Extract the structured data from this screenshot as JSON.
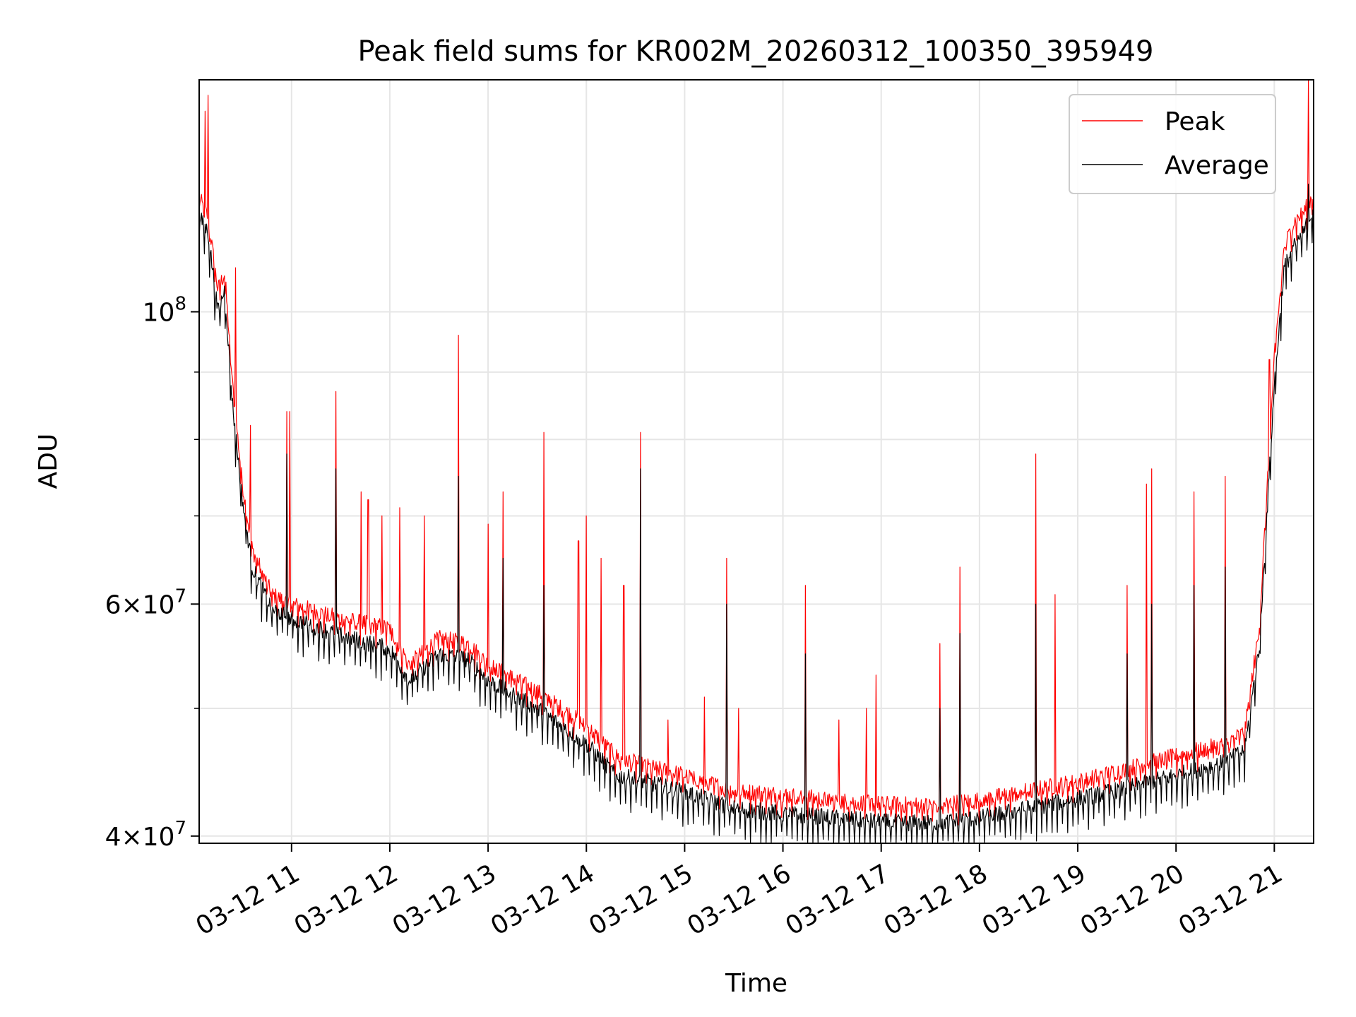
{
  "chart_data": {
    "type": "line",
    "title": "Peak field sums for KR002M_20260312_100350_395949",
    "xlabel": "Time",
    "ylabel": "ADU",
    "yscale": "log",
    "ylim": [
      39500000,
      150000000
    ],
    "xlim_hours": [
      10.06,
      21.4
    ],
    "x_ticks": [
      {
        "hour": 11,
        "label": "03-12 11"
      },
      {
        "hour": 12,
        "label": "03-12 12"
      },
      {
        "hour": 13,
        "label": "03-12 13"
      },
      {
        "hour": 14,
        "label": "03-12 14"
      },
      {
        "hour": 15,
        "label": "03-12 15"
      },
      {
        "hour": 16,
        "label": "03-12 16"
      },
      {
        "hour": 17,
        "label": "03-12 17"
      },
      {
        "hour": 18,
        "label": "03-12 18"
      },
      {
        "hour": 19,
        "label": "03-12 19"
      },
      {
        "hour": 20,
        "label": "03-12 20"
      },
      {
        "hour": 21,
        "label": "03-12 21"
      }
    ],
    "y_ticks_major": [
      {
        "value": 40000000,
        "base": "4",
        "exp": "7"
      },
      {
        "value": 60000000,
        "base": "6",
        "exp": "7"
      },
      {
        "value": 100000000,
        "base": "",
        "exp": "8"
      }
    ],
    "y_ticks_minor": [
      50000000,
      70000000,
      80000000,
      90000000
    ],
    "grid": true,
    "legend_position": "top-right",
    "series": [
      {
        "name": "Peak",
        "color": "#ff0000",
        "baseline": [
          [
            10.06,
            122000000
          ],
          [
            10.15,
            118000000
          ],
          [
            10.25,
            104000000
          ],
          [
            10.32,
            107000000
          ],
          [
            10.4,
            88000000
          ],
          [
            10.5,
            74000000
          ],
          [
            10.6,
            66000000
          ],
          [
            10.8,
            61000000
          ],
          [
            11.0,
            60000000
          ],
          [
            11.5,
            58500000
          ],
          [
            12.0,
            57500000
          ],
          [
            12.2,
            54000000
          ],
          [
            12.5,
            56500000
          ],
          [
            12.8,
            56000000
          ],
          [
            13.0,
            54000000
          ],
          [
            13.5,
            51500000
          ],
          [
            14.0,
            48500000
          ],
          [
            14.3,
            46000000
          ],
          [
            14.6,
            45200000
          ],
          [
            15.0,
            44500000
          ],
          [
            15.5,
            43300000
          ],
          [
            16.0,
            43000000
          ],
          [
            16.5,
            42600000
          ],
          [
            17.0,
            42300000
          ],
          [
            17.5,
            42200000
          ],
          [
            18.0,
            42600000
          ],
          [
            18.5,
            43300000
          ],
          [
            19.0,
            44000000
          ],
          [
            19.5,
            45000000
          ],
          [
            20.0,
            46000000
          ],
          [
            20.5,
            47000000
          ],
          [
            20.7,
            48000000
          ],
          [
            20.85,
            58000000
          ],
          [
            21.0,
            92000000
          ],
          [
            21.1,
            112000000
          ],
          [
            21.2,
            117000000
          ],
          [
            21.3,
            119000000
          ],
          [
            21.4,
            123000000
          ]
        ],
        "spikes": [
          [
            10.12,
            142000000
          ],
          [
            10.15,
            146000000
          ],
          [
            10.43,
            108000000
          ],
          [
            10.58,
            82000000
          ],
          [
            10.95,
            84000000
          ],
          [
            10.98,
            84000000
          ],
          [
            11.45,
            87000000
          ],
          [
            11.71,
            73000000
          ],
          [
            11.78,
            72000000
          ],
          [
            11.92,
            70000000
          ],
          [
            12.1,
            71000000
          ],
          [
            12.35,
            70000000
          ],
          [
            12.7,
            96000000
          ],
          [
            13.0,
            69000000
          ],
          [
            13.15,
            73000000
          ],
          [
            13.57,
            81000000
          ],
          [
            13.92,
            67000000
          ],
          [
            14.0,
            70000000
          ],
          [
            14.15,
            65000000
          ],
          [
            14.38,
            62000000
          ],
          [
            14.55,
            81000000
          ],
          [
            14.83,
            49000000
          ],
          [
            15.2,
            51000000
          ],
          [
            15.43,
            65000000
          ],
          [
            15.55,
            50000000
          ],
          [
            16.23,
            62000000
          ],
          [
            16.57,
            49000000
          ],
          [
            16.85,
            50000000
          ],
          [
            16.95,
            53000000
          ],
          [
            17.6,
            56000000
          ],
          [
            17.8,
            64000000
          ],
          [
            18.57,
            78000000
          ],
          [
            18.77,
            61000000
          ],
          [
            19.5,
            62000000
          ],
          [
            19.7,
            74000000
          ],
          [
            19.75,
            76000000
          ],
          [
            20.18,
            73000000
          ],
          [
            20.5,
            75000000
          ],
          [
            20.95,
            92000000
          ],
          [
            21.35,
            150000000
          ]
        ]
      },
      {
        "name": "Average",
        "color": "#000000",
        "baseline": [
          [
            10.06,
            118000000
          ],
          [
            10.15,
            115000000
          ],
          [
            10.25,
            100000000
          ],
          [
            10.32,
            104000000
          ],
          [
            10.4,
            85000000
          ],
          [
            10.5,
            72000000
          ],
          [
            10.6,
            64000000
          ],
          [
            10.8,
            59500000
          ],
          [
            11.0,
            58500000
          ],
          [
            11.5,
            56800000
          ],
          [
            12.0,
            55500000
          ],
          [
            12.2,
            52500000
          ],
          [
            12.5,
            55000000
          ],
          [
            12.8,
            54500000
          ],
          [
            13.0,
            52500000
          ],
          [
            13.5,
            50000000
          ],
          [
            14.0,
            47000000
          ],
          [
            14.3,
            44500000
          ],
          [
            14.6,
            44000000
          ],
          [
            15.0,
            43200000
          ],
          [
            15.5,
            42000000
          ],
          [
            16.0,
            41600000
          ],
          [
            16.5,
            41300000
          ],
          [
            17.0,
            41000000
          ],
          [
            17.5,
            40900000
          ],
          [
            18.0,
            41300000
          ],
          [
            18.5,
            42000000
          ],
          [
            19.0,
            42700000
          ],
          [
            19.5,
            43500000
          ],
          [
            20.0,
            44500000
          ],
          [
            20.5,
            45500000
          ],
          [
            20.7,
            46500000
          ],
          [
            20.85,
            56000000
          ],
          [
            21.0,
            88000000
          ],
          [
            21.1,
            108000000
          ],
          [
            21.2,
            112000000
          ],
          [
            21.3,
            115000000
          ],
          [
            21.4,
            120000000
          ]
        ],
        "spikes": [
          [
            10.95,
            78000000
          ],
          [
            11.45,
            76000000
          ],
          [
            12.7,
            75000000
          ],
          [
            13.15,
            65000000
          ],
          [
            13.57,
            62000000
          ],
          [
            14.55,
            76000000
          ],
          [
            15.43,
            60000000
          ],
          [
            16.23,
            55000000
          ],
          [
            17.6,
            50000000
          ],
          [
            17.8,
            57000000
          ],
          [
            18.57,
            60000000
          ],
          [
            19.5,
            55000000
          ],
          [
            19.75,
            60000000
          ],
          [
            20.18,
            62000000
          ],
          [
            20.5,
            64000000
          ],
          [
            21.35,
            125000000
          ]
        ]
      }
    ]
  }
}
